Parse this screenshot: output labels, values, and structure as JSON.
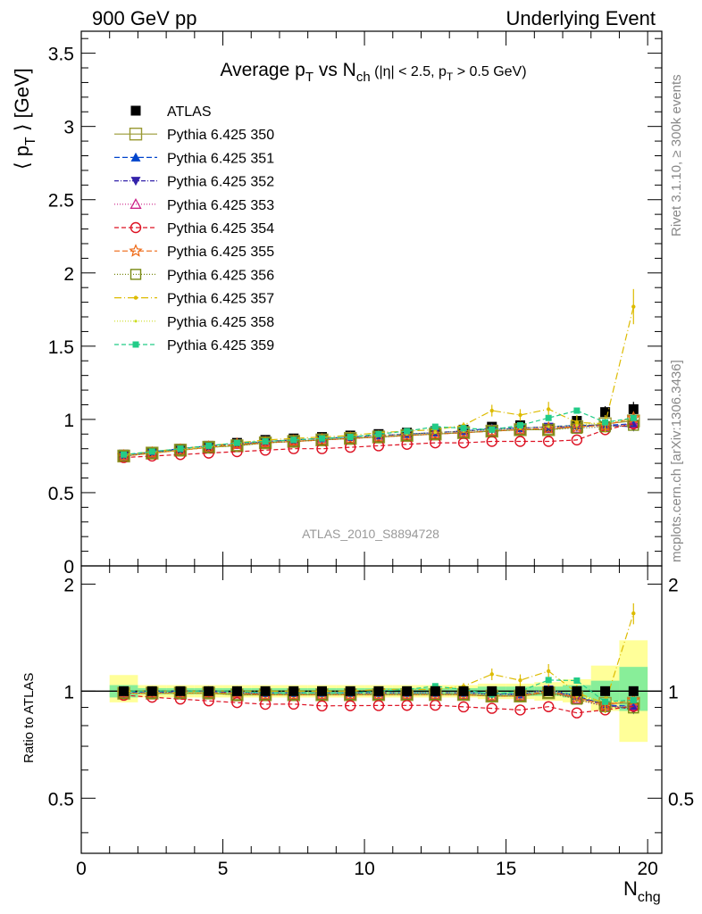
{
  "header": {
    "left": "900 GeV pp",
    "right": "Underlying Event"
  },
  "side_labels": {
    "rivet": "Rivet 3.1.10, ≥ 300k events",
    "mcplots": "mcplots.cern.ch [arXiv:1306.3436]"
  },
  "analysis_id": "ATLAS_2010_S8894728",
  "chart_data": [
    {
      "type": "line",
      "title_parts": {
        "a": "Average p",
        "a_sub": "T",
        "b": " vs N",
        "b_sub": "ch",
        "c": " (|η| < 2.5, p",
        "c_sub": "T",
        "d": " > 0.5 GeV)"
      },
      "ylabel_parts": {
        "a": "⟨ p",
        "sub": "T",
        "b": " ⟩ [GeV]"
      },
      "xlabel_parts": {
        "a": "N",
        "sub": "chg"
      },
      "xlim": [
        0,
        20.5
      ],
      "ylim": [
        0,
        3.65
      ],
      "x_ticks": [
        0,
        5,
        10,
        15,
        20
      ],
      "y_ticks": [
        0,
        0.5,
        1,
        1.5,
        2,
        2.5,
        3,
        3.5
      ],
      "y_tick_labels": [
        "0",
        "0.5",
        "1",
        "1.5",
        "2",
        "2.5",
        "3",
        "3.5"
      ],
      "x": [
        1.5,
        2.5,
        3.5,
        4.5,
        5.5,
        6.5,
        7.5,
        8.5,
        9.5,
        10.5,
        11.5,
        12.5,
        13.5,
        14.5,
        15.5,
        16.5,
        17.5,
        18.5,
        19.5
      ],
      "legend_position": "top-left",
      "series": [
        {
          "name": "ATLAS",
          "color": "#000000",
          "marker": "filled-square",
          "dash": "none",
          "line": false,
          "values": [
            0.76,
            0.78,
            0.8,
            0.82,
            0.84,
            0.86,
            0.87,
            0.88,
            0.89,
            0.9,
            0.91,
            0.92,
            0.93,
            0.95,
            0.96,
            0.94,
            0.99,
            1.05,
            1.07
          ],
          "errors": [
            0.01,
            0.01,
            0.01,
            0.01,
            0.01,
            0.01,
            0.01,
            0.01,
            0.01,
            0.01,
            0.01,
            0.01,
            0.01,
            0.02,
            0.02,
            0.02,
            0.03,
            0.04,
            0.05
          ]
        },
        {
          "name": "Pythia 6.425 350",
          "color": "#999933",
          "marker": "open-square",
          "dash": "none",
          "values": [
            0.75,
            0.77,
            0.79,
            0.81,
            0.82,
            0.84,
            0.85,
            0.86,
            0.87,
            0.88,
            0.89,
            0.9,
            0.91,
            0.92,
            0.93,
            0.93,
            0.95,
            0.97,
            0.99
          ]
        },
        {
          "name": "Pythia 6.425 351",
          "color": "#0044cc",
          "marker": "filled-triangle-up",
          "dash": "6,3",
          "values": [
            0.75,
            0.78,
            0.8,
            0.82,
            0.83,
            0.85,
            0.86,
            0.87,
            0.88,
            0.89,
            0.9,
            0.91,
            0.92,
            0.94,
            0.94,
            0.95,
            0.96,
            0.96,
            0.97
          ]
        },
        {
          "name": "Pythia 6.425 352",
          "color": "#3322aa",
          "marker": "filled-triangle-down",
          "dash": "5,2,1,2",
          "values": [
            0.75,
            0.77,
            0.8,
            0.82,
            0.83,
            0.85,
            0.86,
            0.87,
            0.88,
            0.89,
            0.9,
            0.91,
            0.92,
            0.93,
            0.94,
            0.95,
            0.95,
            0.96,
            0.95
          ]
        },
        {
          "name": "Pythia 6.425 353",
          "color": "#cc2288",
          "marker": "open-triangle-up",
          "dash": "1,2",
          "values": [
            0.75,
            0.77,
            0.79,
            0.81,
            0.83,
            0.84,
            0.85,
            0.86,
            0.87,
            0.88,
            0.89,
            0.9,
            0.91,
            0.92,
            0.93,
            0.94,
            0.94,
            0.95,
            0.97
          ]
        },
        {
          "name": "Pythia 6.425 354",
          "color": "#dd1122",
          "marker": "open-circle",
          "dash": "5,3",
          "values": [
            0.74,
            0.75,
            0.76,
            0.77,
            0.78,
            0.79,
            0.8,
            0.8,
            0.81,
            0.82,
            0.83,
            0.84,
            0.84,
            0.85,
            0.85,
            0.85,
            0.86,
            0.93,
            0.97
          ]
        },
        {
          "name": "Pythia 6.425 355",
          "color": "#ee6611",
          "marker": "open-star",
          "dash": "6,3",
          "values": [
            0.75,
            0.77,
            0.79,
            0.81,
            0.83,
            0.84,
            0.85,
            0.86,
            0.87,
            0.88,
            0.89,
            0.9,
            0.91,
            0.92,
            0.93,
            0.94,
            0.95,
            0.96,
            1.01
          ]
        },
        {
          "name": "Pythia 6.425 356",
          "color": "#778811",
          "marker": "open-square-small",
          "dash": "1,2",
          "values": [
            0.75,
            0.77,
            0.79,
            0.81,
            0.82,
            0.84,
            0.85,
            0.86,
            0.87,
            0.88,
            0.89,
            0.9,
            0.91,
            0.92,
            0.93,
            0.93,
            0.94,
            0.95,
            0.96
          ]
        },
        {
          "name": "Pythia 6.425 357",
          "color": "#ddbb00",
          "marker": "dot",
          "dash": "8,3,1,3",
          "values": [
            0.76,
            0.78,
            0.8,
            0.82,
            0.84,
            0.86,
            0.87,
            0.88,
            0.89,
            0.91,
            0.92,
            0.93,
            0.96,
            1.06,
            1.03,
            1.07,
            0.98,
            0.97,
            1.77
          ],
          "errors": [
            0,
            0,
            0,
            0,
            0,
            0,
            0,
            0,
            0,
            0,
            0,
            0,
            0.02,
            0.04,
            0.04,
            0.05,
            0.05,
            0.06,
            0.12
          ]
        },
        {
          "name": "Pythia 6.425 358",
          "color": "#ccdd22",
          "marker": "dot-small",
          "dash": "1,2",
          "values": [
            0.75,
            0.77,
            0.79,
            0.81,
            0.83,
            0.85,
            0.86,
            0.87,
            0.88,
            0.89,
            0.9,
            0.91,
            0.92,
            0.93,
            0.94,
            0.95,
            0.96,
            0.98,
            1.0
          ]
        },
        {
          "name": "Pythia 6.425 359",
          "color": "#22cc88",
          "marker": "filled-square-small",
          "dash": "5,3",
          "values": [
            0.76,
            0.78,
            0.8,
            0.82,
            0.84,
            0.85,
            0.86,
            0.87,
            0.88,
            0.9,
            0.92,
            0.95,
            0.94,
            0.93,
            0.96,
            1.01,
            1.06,
            0.98,
            1.01
          ]
        }
      ]
    },
    {
      "type": "line",
      "ylabel": "Ratio to ATLAS",
      "ylim": [
        0.35,
        2.25
      ],
      "y_ticks": [
        0.5,
        1,
        2
      ],
      "y_tick_labels": [
        "0.5",
        "1",
        "2"
      ],
      "x_ticks": [
        0,
        5,
        10,
        15,
        20
      ],
      "x_tick_labels": [
        "0",
        "5",
        "10",
        "15",
        "20"
      ],
      "band_edges": [
        1,
        2,
        3,
        4,
        5,
        6,
        7,
        8,
        9,
        10,
        11,
        12,
        13,
        14,
        15,
        16,
        17,
        18,
        19,
        20
      ],
      "yellow_band": [
        [
          0.93,
          1.11
        ],
        [
          0.96,
          1.04
        ],
        [
          0.96,
          1.04
        ],
        [
          0.96,
          1.04
        ],
        [
          0.96,
          1.04
        ],
        [
          0.96,
          1.04
        ],
        [
          0.96,
          1.04
        ],
        [
          0.96,
          1.04
        ],
        [
          0.96,
          1.04
        ],
        [
          0.96,
          1.04
        ],
        [
          0.96,
          1.04
        ],
        [
          0.96,
          1.04
        ],
        [
          0.96,
          1.04
        ],
        [
          0.95,
          1.05
        ],
        [
          0.95,
          1.05
        ],
        [
          0.94,
          1.06
        ],
        [
          0.93,
          1.08
        ],
        [
          0.88,
          1.18
        ],
        [
          0.72,
          1.39
        ]
      ],
      "green_band": [
        [
          0.96,
          1.04
        ],
        [
          0.98,
          1.02
        ],
        [
          0.98,
          1.02
        ],
        [
          0.98,
          1.02
        ],
        [
          0.98,
          1.02
        ],
        [
          0.98,
          1.02
        ],
        [
          0.98,
          1.02
        ],
        [
          0.98,
          1.02
        ],
        [
          0.98,
          1.02
        ],
        [
          0.98,
          1.02
        ],
        [
          0.98,
          1.02
        ],
        [
          0.98,
          1.02
        ],
        [
          0.98,
          1.02
        ],
        [
          0.97,
          1.03
        ],
        [
          0.97,
          1.03
        ],
        [
          0.97,
          1.03
        ],
        [
          0.96,
          1.04
        ],
        [
          0.94,
          1.07
        ],
        [
          0.88,
          1.17
        ]
      ]
    }
  ]
}
